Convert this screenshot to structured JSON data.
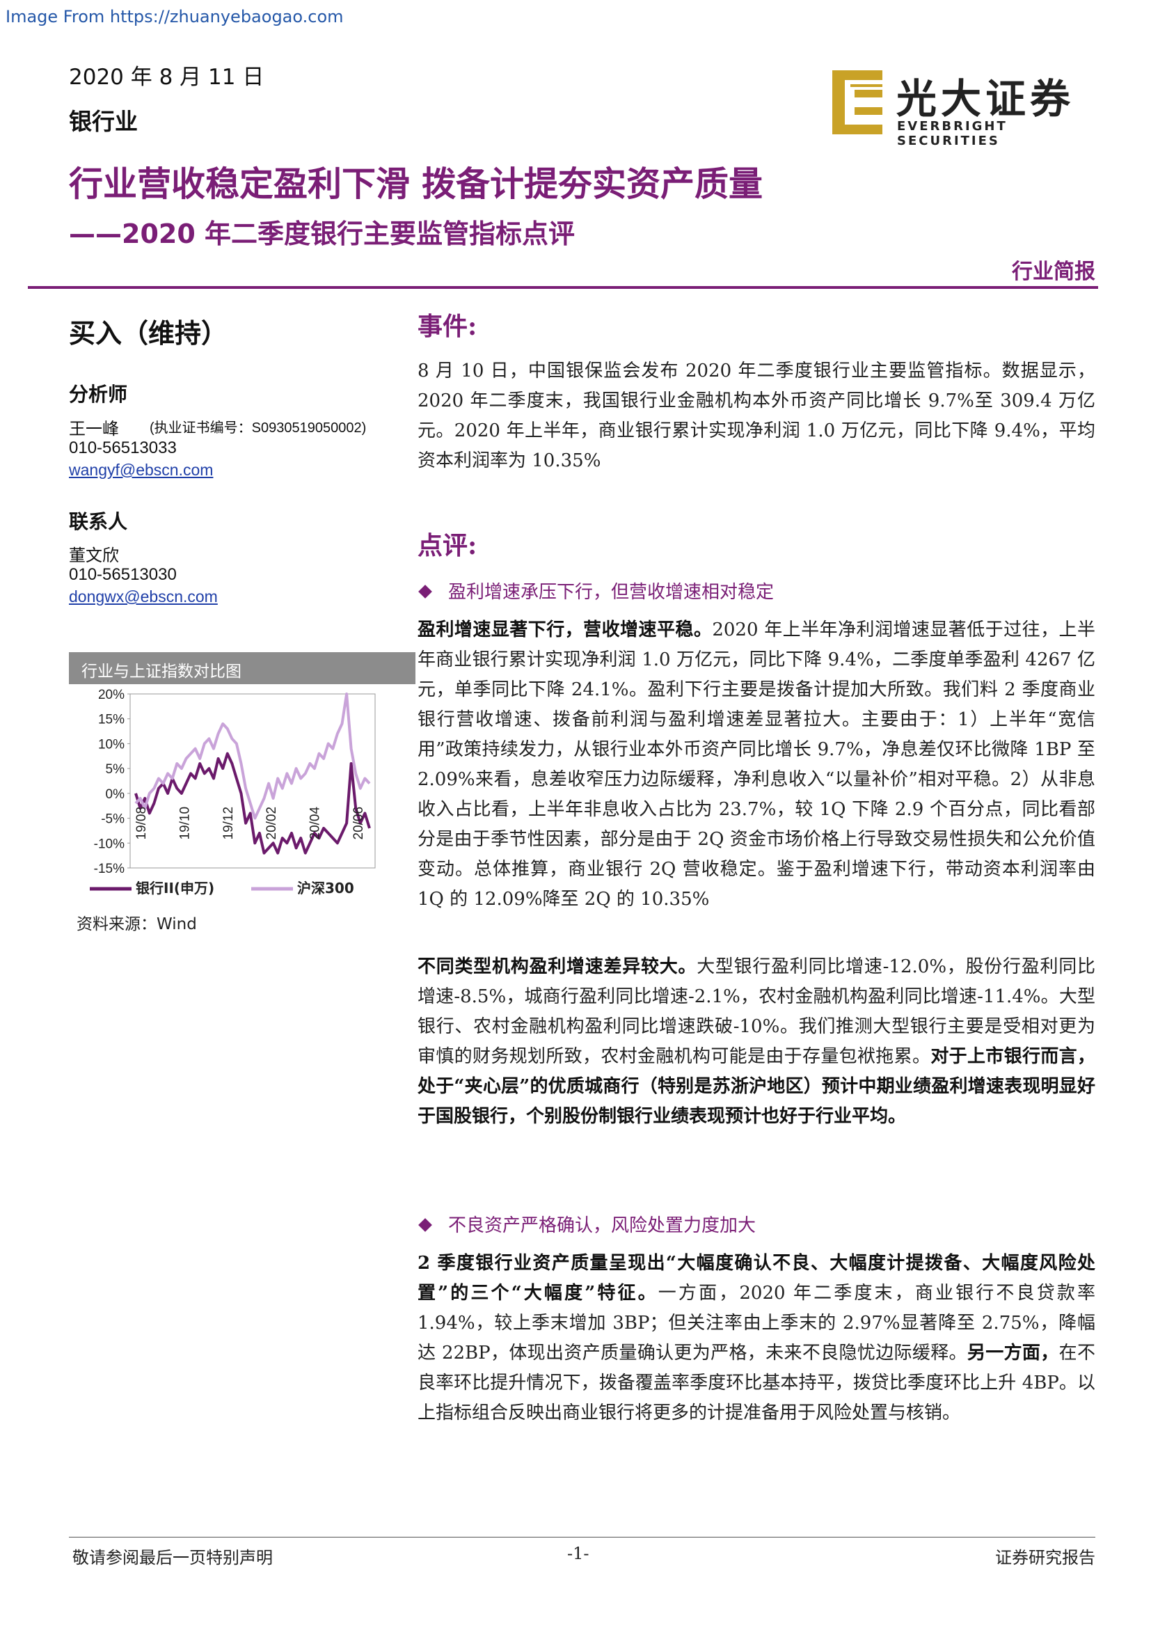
{
  "watermark": "Image From https://zhuanyebaogao.com",
  "header": {
    "date": "2020 年 8 月 11 日",
    "industry": "银行业",
    "logo_cn": "光大证券",
    "logo_en": "EVERBRIGHT SECURITIES",
    "title": "行业营收稳定盈利下滑 拨备计提夯实资产质量",
    "subtitle": "——2020 年二季度银行主要监管指标点评",
    "report_type": "行业简报"
  },
  "sidebar": {
    "rating": "买入（维持）",
    "analyst_label": "分析师",
    "analyst_name": "王一峰",
    "analyst_cert": "(执业证书编号：S0930519050002)",
    "analyst_phone": "010-56513033",
    "analyst_email": "wangyf@ebscn.com",
    "contact_label": "联系人",
    "contact_name": "董文欣",
    "contact_phone": "010-56513030",
    "contact_email": "dongwx@ebscn.com",
    "chart_title": "行业与上证指数对比图",
    "source": "资料来源：Wind"
  },
  "chart_data": {
    "type": "line",
    "title": "行业与上证指数对比图",
    "x_ticks": [
      "19/08",
      "19/10",
      "19/12",
      "20/02",
      "20/04",
      "20/06"
    ],
    "y_ticks": [
      "20%",
      "15%",
      "10%",
      "5%",
      "0%",
      "-5%",
      "-10%",
      "-15%"
    ],
    "ylim": [
      -15,
      20
    ],
    "series": [
      {
        "name": "银行II(申万)",
        "color": "#6b1a6b",
        "values": [
          0,
          -3,
          -1,
          -4,
          -2,
          1,
          2,
          0,
          3,
          1,
          0,
          2,
          4,
          3,
          6,
          4,
          5,
          3,
          7,
          5,
          8,
          6,
          3,
          0,
          -6,
          -4,
          -10,
          -8,
          -12,
          -11,
          -10,
          -12,
          -9,
          -10,
          -8,
          -11,
          -9,
          -12,
          -10,
          -8,
          -9,
          -7,
          -8,
          -9,
          -10,
          -8,
          -6,
          6,
          -3,
          -6,
          -4,
          -7
        ]
      },
      {
        "name": "沪深300",
        "color": "#c9a3d9",
        "values": [
          -2,
          -1,
          -3,
          0,
          1,
          3,
          2,
          4,
          3,
          6,
          5,
          7,
          8,
          9,
          7,
          10,
          11,
          9,
          12,
          14,
          13,
          11,
          10,
          6,
          1,
          -2,
          -5,
          -3,
          -1,
          2,
          -1,
          3,
          1,
          4,
          2,
          5,
          3,
          4,
          6,
          5,
          8,
          7,
          10,
          9,
          12,
          14,
          20,
          9,
          4,
          1,
          3,
          2
        ]
      }
    ],
    "legend": "bottom"
  },
  "event": {
    "heading": "事件:",
    "text": "8 月 10 日，中国银保监会发布 2020 年二季度银行业主要监管指标。数据显示，2020 年二季度末，我国银行业金融机构本外币资产同比增长 9.7%至 309.4 万亿元。2020 年上半年，商业银行累计实现净利润 1.0 万亿元，同比下降 9.4%，平均资本利润率为 10.35%"
  },
  "review": {
    "heading": "点评:",
    "bullet1": "盈利增速承压下行，但营收增速相对稳定",
    "p1_bold": "盈利增速显著下行，营收增速平稳。",
    "p1_text": "2020 年上半年净利润增速显著低于过往，上半年商业银行累计实现净利润 1.0 万亿元，同比下降 9.4%，二季度单季盈利 4267 亿元，单季同比下降 24.1%。盈利下行主要是拨备计提加大所致。我们料 2 季度商业银行营收增速、拨备前利润与盈利增速差显著拉大。主要由于：1）上半年“宽信用”政策持续发力，从银行业本外币资产同比增长 9.7%，净息差仅环比微降 1BP 至 2.09%来看，息差收窄压力边际缓释，净利息收入“以量补价”相对平稳。2）从非息收入占比看，上半年非息收入占比为 23.7%，较 1Q 下降 2.9 个百分点，同比看部分是由于季节性因素，部分是由于 2Q 资金市场价格上行导致交易性损失和公允价值变动。总体推算，商业银行 2Q 营收稳定。鉴于盈利增速下行，带动资本利润率由 1Q 的 12.09%降至 2Q 的 10.35%",
    "p2_bold": "不同类型机构盈利增速差异较大。",
    "p2_text": "大型银行盈利同比增速-12.0%，股份行盈利同比增速-8.5%，城商行盈利同比增速-2.1%，农村金融机构盈利同比增速-11.4%。大型银行、农村金融机构盈利同比增速跌破-10%。我们推测大型银行主要是受相对更为审慎的财务规划所致，农村金融机构可能是由于存量包袱拖累。",
    "p2_bold_tail": "对于上市银行而言，处于“夹心层”的优质城商行（特别是苏浙沪地区）预计中期业绩盈利增速表现明显好于国股银行，个别股份制银行业绩表现预计也好于行业平均。",
    "bullet2": "不良资产严格确认，风险处置力度加大",
    "p3_bold": "2 季度银行业资产质量呈现出“大幅度确认不良、大幅度计提拨备、大幅度风险处置”的三个“大幅度”特征。",
    "p3_text": "一方面，2020 年二季度末，商业银行不良贷款率 1.94%，较上季末增加 3BP；但关注率由上季末的 2.97%显著降至 2.75%，降幅达 22BP，体现出资产质量确认更为严格，未来不良隐忧边际缓释。",
    "p3_bold2": "另一方面，",
    "p3_text2": "在不良率环比提升情况下，拨备覆盖率季度环比基本持平，拨贷比季度环比上升 4BP。以上指标组合反映出商业银行将更多的计提准备用于风险处置与核销。"
  },
  "footer": {
    "left": "敬请参阅最后一页特别声明",
    "center": "-1-",
    "right": "证券研究报告"
  }
}
